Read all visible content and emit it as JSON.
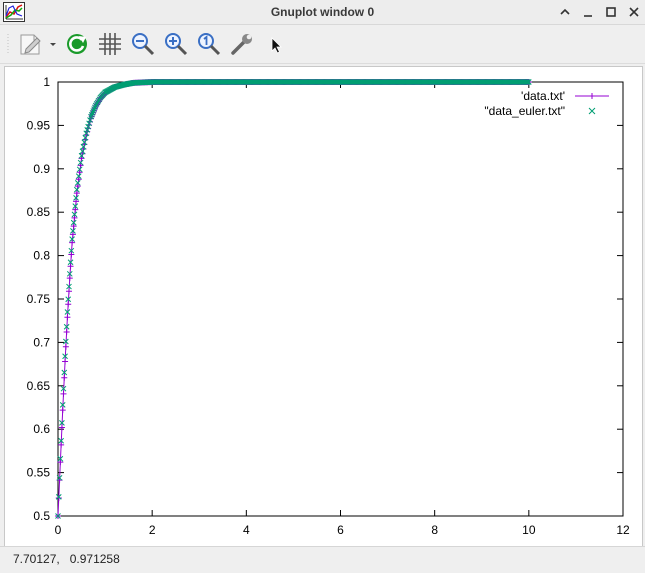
{
  "window": {
    "title": "Gnuplot window 0",
    "icon": "gnuplot-app-icon",
    "controls": [
      "chevron-up-icon",
      "minimize-icon",
      "maximize-icon",
      "close-icon"
    ]
  },
  "toolbar": {
    "items": [
      "export-icon",
      "dropdown-arrow-icon",
      "replot-icon",
      "grid-icon",
      "zoom-out-icon",
      "zoom-in-icon",
      "zoom-reset-icon",
      "settings-wrench-icon"
    ]
  },
  "status": {
    "coords": "7.70127,   0.971258"
  },
  "colors": {
    "series1": "#9400d3",
    "series2": "#009e73",
    "replot_green": "#1a9a2a",
    "magnifier_blue": "#3a6fc4"
  },
  "chart_data": {
    "type": "line",
    "title": "",
    "xlabel": "",
    "ylabel": "",
    "xlim": [
      0,
      12
    ],
    "ylim": [
      0.5,
      1
    ],
    "x_ticks": [
      "0",
      "2",
      "4",
      "6",
      "8",
      "10",
      "12"
    ],
    "y_ticks": [
      "0.5",
      "0.55",
      "0.6",
      "0.65",
      "0.7",
      "0.75",
      "0.8",
      "0.85",
      "0.9",
      "0.95",
      "1"
    ],
    "grid": false,
    "legend_position": "top-right",
    "series": [
      {
        "name": "'data.txt'",
        "style": "linespoints plus",
        "x": [
          0,
          0.05,
          0.1,
          0.15,
          0.2,
          0.25,
          0.3,
          0.4,
          0.5,
          0.6,
          0.7,
          0.8,
          0.9,
          1.0,
          1.2,
          1.4,
          1.6,
          1.8,
          2.0,
          10
        ],
        "y": [
          0.5,
          0.562,
          0.622,
          0.678,
          0.729,
          0.774,
          0.815,
          0.872,
          0.912,
          0.939,
          0.958,
          0.972,
          0.981,
          0.987,
          0.994,
          0.997,
          0.999,
          0.9995,
          1.0,
          1.0
        ]
      },
      {
        "name": "\"data_euler.txt\"",
        "style": "points cross",
        "x": [
          0,
          0.05,
          0.1,
          0.15,
          0.2,
          0.25,
          0.3,
          0.4,
          0.5,
          0.6,
          0.7,
          0.8,
          0.9,
          1.0,
          1.2,
          1.4,
          1.6,
          1.8,
          2.0,
          10
        ],
        "y": [
          0.5,
          0.566,
          0.628,
          0.684,
          0.735,
          0.779,
          0.819,
          0.876,
          0.915,
          0.941,
          0.96,
          0.973,
          0.982,
          0.988,
          0.994,
          0.997,
          0.999,
          0.9995,
          1.0,
          1.0
        ]
      }
    ]
  }
}
